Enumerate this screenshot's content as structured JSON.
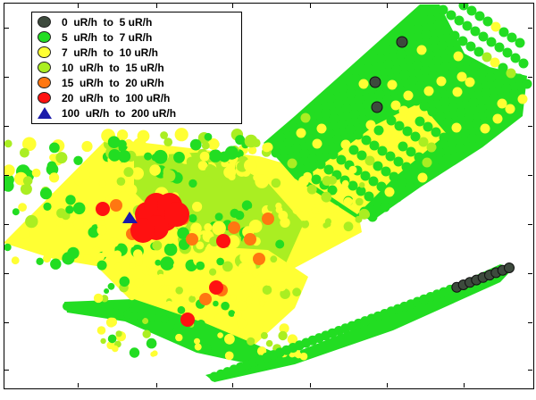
{
  "legend": {
    "items": [
      {
        "label": "0  uR/h  to  5 uR/h",
        "color": "#3d4a3d",
        "marker": "circle"
      },
      {
        "label": "5  uR/h  to  7 uR/h",
        "color": "#22dd22",
        "marker": "circle"
      },
      {
        "label": "7  uR/h  to  10 uR/h",
        "color": "#ffff33",
        "marker": "circle"
      },
      {
        "label": "10  uR/h  to  15 uR/h",
        "color": "#aaee22",
        "marker": "circle"
      },
      {
        "label": "15  uR/h  to  20 uR/h",
        "color": "#ff7711",
        "marker": "circle"
      },
      {
        "label": "20  uR/h  to  100 uR/h",
        "color": "#ff1111",
        "marker": "circle"
      },
      {
        "label": "100  uR/h  to  200 uR/h",
        "color": "#1a1aaa",
        "marker": "triangle"
      }
    ]
  }
}
